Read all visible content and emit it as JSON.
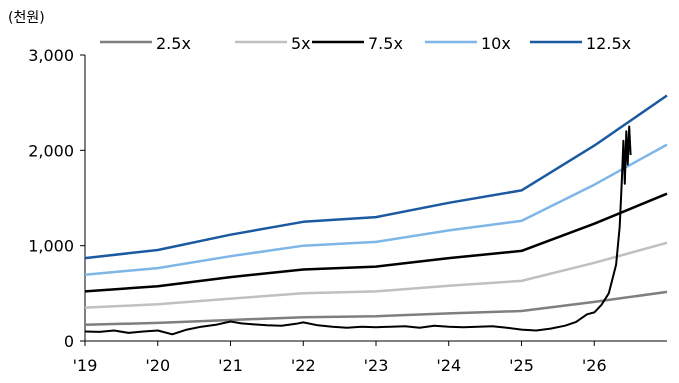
{
  "chart_data": {
    "type": "line",
    "unit_label": "(천원)",
    "title": "",
    "xlabel": "",
    "ylabel": "",
    "ylim": [
      0,
      3000
    ],
    "xlim": [
      2019.0,
      2027.0
    ],
    "y_ticks": [
      0,
      1000,
      2000,
      3000
    ],
    "y_tick_labels": [
      "0",
      "1,000",
      "2,000",
      "3,000"
    ],
    "x_ticks": [
      2019,
      2020,
      2021,
      2022,
      2023,
      2024,
      2025,
      2026
    ],
    "x_tick_labels": [
      "'19",
      "'20",
      "'21",
      "'22",
      "'23",
      "'24",
      "'25",
      "'26"
    ],
    "grid": false,
    "legend_position": "top",
    "series": [
      {
        "name": "2.5x",
        "color": "#7f7f7f",
        "points": [
          [
            2019.0,
            170
          ],
          [
            2020.0,
            190
          ],
          [
            2021.0,
            220
          ],
          [
            2022.0,
            250
          ],
          [
            2023.0,
            260
          ],
          [
            2024.0,
            290
          ],
          [
            2025.0,
            315
          ],
          [
            2026.0,
            410
          ],
          [
            2027.0,
            515
          ]
        ]
      },
      {
        "name": "5x",
        "color": "#c0c0c0",
        "points": [
          [
            2019.0,
            350
          ],
          [
            2020.0,
            385
          ],
          [
            2021.0,
            445
          ],
          [
            2022.0,
            500
          ],
          [
            2023.0,
            520
          ],
          [
            2024.0,
            580
          ],
          [
            2025.0,
            630
          ],
          [
            2026.0,
            820
          ],
          [
            2027.0,
            1030
          ]
        ]
      },
      {
        "name": "7.5x",
        "color": "#000000",
        "points": [
          [
            2019.0,
            520
          ],
          [
            2020.0,
            575
          ],
          [
            2021.0,
            670
          ],
          [
            2022.0,
            750
          ],
          [
            2023.0,
            780
          ],
          [
            2024.0,
            870
          ],
          [
            2025.0,
            945
          ],
          [
            2026.0,
            1230
          ],
          [
            2027.0,
            1545
          ]
        ]
      },
      {
        "name": "10x",
        "color": "#7fb6e8",
        "points": [
          [
            2019.0,
            695
          ],
          [
            2020.0,
            765
          ],
          [
            2021.0,
            890
          ],
          [
            2022.0,
            1000
          ],
          [
            2023.0,
            1040
          ],
          [
            2024.0,
            1160
          ],
          [
            2025.0,
            1260
          ],
          [
            2026.0,
            1640
          ],
          [
            2027.0,
            2060
          ]
        ]
      },
      {
        "name": "12.5x",
        "color": "#1b5aa0",
        "points": [
          [
            2019.0,
            870
          ],
          [
            2020.0,
            955
          ],
          [
            2021.0,
            1115
          ],
          [
            2022.0,
            1250
          ],
          [
            2023.0,
            1300
          ],
          [
            2024.0,
            1450
          ],
          [
            2025.0,
            1580
          ],
          [
            2026.0,
            2050
          ],
          [
            2027.0,
            2575
          ]
        ]
      }
    ],
    "price_series": {
      "color": "#000000",
      "points": [
        [
          2019.0,
          100
        ],
        [
          2019.2,
          95
        ],
        [
          2019.4,
          110
        ],
        [
          2019.6,
          85
        ],
        [
          2019.8,
          100
        ],
        [
          2020.0,
          110
        ],
        [
          2020.2,
          70
        ],
        [
          2020.4,
          120
        ],
        [
          2020.6,
          150
        ],
        [
          2020.8,
          170
        ],
        [
          2021.0,
          205
        ],
        [
          2021.15,
          185
        ],
        [
          2021.3,
          175
        ],
        [
          2021.5,
          165
        ],
        [
          2021.7,
          160
        ],
        [
          2021.9,
          180
        ],
        [
          2022.0,
          195
        ],
        [
          2022.2,
          165
        ],
        [
          2022.4,
          150
        ],
        [
          2022.6,
          140
        ],
        [
          2022.8,
          150
        ],
        [
          2023.0,
          145
        ],
        [
          2023.2,
          150
        ],
        [
          2023.4,
          155
        ],
        [
          2023.6,
          140
        ],
        [
          2023.8,
          160
        ],
        [
          2024.0,
          150
        ],
        [
          2024.2,
          145
        ],
        [
          2024.4,
          150
        ],
        [
          2024.6,
          155
        ],
        [
          2024.8,
          140
        ],
        [
          2025.0,
          120
        ],
        [
          2025.2,
          110
        ],
        [
          2025.4,
          130
        ],
        [
          2025.6,
          160
        ],
        [
          2025.75,
          200
        ],
        [
          2025.9,
          280
        ],
        [
          2026.0,
          300
        ],
        [
          2026.1,
          380
        ],
        [
          2026.2,
          500
        ],
        [
          2026.3,
          800
        ],
        [
          2026.35,
          1200
        ],
        [
          2026.38,
          1700
        ],
        [
          2026.4,
          2100
        ],
        [
          2026.42,
          1650
        ],
        [
          2026.44,
          2200
        ],
        [
          2026.46,
          1850
        ],
        [
          2026.48,
          2250
        ],
        [
          2026.5,
          1950
        ]
      ]
    }
  }
}
